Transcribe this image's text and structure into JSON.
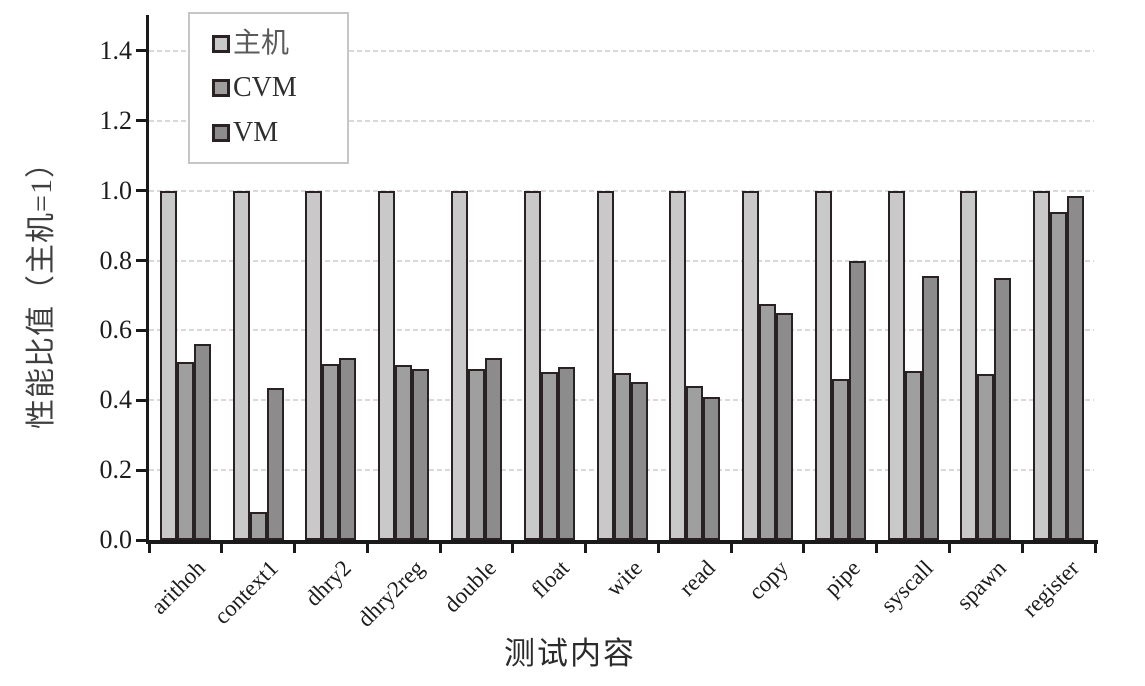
{
  "chart_data": {
    "type": "bar",
    "title": "",
    "xlabel": "测试内容",
    "ylabel": "性能比值（主机=1）",
    "categories": [
      "arithoh",
      "context1",
      "dhry2",
      "dhry2reg",
      "double",
      "float",
      "wite",
      "read",
      "copy",
      "pipe",
      "syscall",
      "spawn",
      "register"
    ],
    "series": [
      {
        "name": "主机",
        "color": "#c9c9c9",
        "values": [
          1.0,
          1.0,
          1.0,
          1.0,
          1.0,
          1.0,
          1.0,
          1.0,
          1.0,
          1.0,
          1.0,
          1.0,
          1.0
        ]
      },
      {
        "name": "CVM",
        "color": "#9f9f9f",
        "values": [
          0.51,
          0.08,
          0.505,
          0.5,
          0.49,
          0.48,
          0.478,
          0.44,
          0.675,
          0.46,
          0.485,
          0.475,
          0.94
        ]
      },
      {
        "name": "VM",
        "color": "#8c8c8c",
        "values": [
          0.56,
          0.435,
          0.52,
          0.49,
          0.52,
          0.495,
          0.452,
          0.41,
          0.65,
          0.8,
          0.755,
          0.75,
          0.985
        ]
      }
    ],
    "ylim": [
      0,
      1.5
    ],
    "yticks": [
      0.0,
      0.2,
      0.4,
      0.6,
      0.8,
      1.0,
      1.2,
      1.4
    ],
    "gridlines": [
      0.2,
      0.4,
      0.6,
      0.8,
      1.0,
      1.2,
      1.4
    ],
    "grid": "horizontal-dashed",
    "legend_position": "top-left-inside"
  },
  "style": {
    "bar_border": "#2a2222",
    "axis_color": "#1a1a1a",
    "gridline_color": "#d9d9d9",
    "text_color": "#1c1c1c",
    "legend_border": "#c6c6c6",
    "background": "#ffffff"
  }
}
